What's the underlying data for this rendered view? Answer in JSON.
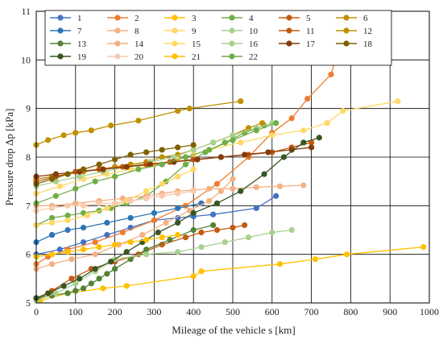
{
  "chart_data": {
    "type": "line",
    "xlabel": "Mileage of the vehicle s [km]",
    "ylabel": "Pressure drop Δp [kPa]",
    "xlim": [
      0,
      1000
    ],
    "ylim": [
      5,
      11
    ],
    "xticks": [
      "0",
      "100",
      "200",
      "300",
      "400",
      "500",
      "600",
      "700",
      "800",
      "900",
      "1000"
    ],
    "yticks": [
      "5",
      "6",
      "7",
      "8",
      "9",
      "10",
      "11"
    ],
    "grid": true,
    "legend_position": "top-left inside",
    "legend_columns": 6,
    "series": [
      {
        "name": "1",
        "color": "#4472c4",
        "x": [
          0,
          60,
          120,
          180,
          240,
          300,
          360,
          400,
          450,
          560,
          610
        ],
        "y": [
          6.0,
          6.1,
          6.25,
          6.4,
          6.55,
          6.7,
          6.75,
          6.78,
          6.82,
          6.95,
          7.2
        ]
      },
      {
        "name": "2",
        "color": "#ed7d31",
        "x": [
          0,
          30,
          80,
          150,
          220,
          300,
          380,
          460,
          540,
          600,
          650,
          690,
          750,
          780
        ],
        "y": [
          5.8,
          5.95,
          6.1,
          6.25,
          6.45,
          6.7,
          7.0,
          7.45,
          8.0,
          8.5,
          8.8,
          9.2,
          9.7,
          10.5
        ]
      },
      {
        "name": "3",
        "color": "#ffc000",
        "x": [
          10,
          80,
          170,
          230,
          400,
          420,
          620,
          710,
          790,
          985
        ],
        "y": [
          5.05,
          5.2,
          5.3,
          5.35,
          5.55,
          5.65,
          5.8,
          5.9,
          6.0,
          6.15
        ]
      },
      {
        "name": "4",
        "color": "#70ad47",
        "x": [
          0,
          40,
          80,
          120,
          160,
          190,
          230,
          280,
          330,
          380,
          430,
          480,
          530,
          580
        ],
        "y": [
          6.6,
          6.75,
          6.8,
          6.85,
          6.9,
          6.95,
          7.05,
          7.2,
          7.5,
          7.85,
          8.1,
          8.3,
          8.5,
          8.65
        ]
      },
      {
        "name": "5",
        "color": "#c55a11",
        "x": [
          0,
          40,
          90,
          140,
          200,
          260,
          320,
          380,
          420,
          460,
          500,
          530
        ],
        "y": [
          5.05,
          5.25,
          5.5,
          5.7,
          5.85,
          6.0,
          6.2,
          6.35,
          6.45,
          6.5,
          6.55,
          6.6
        ]
      },
      {
        "name": "6",
        "color": "#bf9000",
        "x": [
          0,
          40,
          80,
          120,
          160,
          200,
          240,
          280,
          320,
          360,
          400,
          450,
          500,
          540,
          575
        ],
        "y": [
          7.55,
          7.6,
          7.65,
          7.7,
          7.75,
          7.8,
          7.85,
          7.9,
          8.0,
          8.05,
          8.15,
          8.3,
          8.45,
          8.6,
          8.7
        ]
      },
      {
        "name": "7",
        "color": "#2e75b6",
        "x": [
          0,
          40,
          80,
          120,
          180,
          240,
          300,
          360,
          420
        ],
        "y": [
          6.25,
          6.4,
          6.5,
          6.55,
          6.65,
          6.75,
          6.85,
          6.95,
          7.05
        ]
      },
      {
        "name": "8",
        "color": "#f4b183",
        "x": [
          0,
          40,
          100,
          160,
          220,
          280,
          320,
          360,
          400,
          440,
          500,
          560,
          620,
          680
        ],
        "y": [
          7.0,
          7.0,
          7.05,
          7.1,
          7.15,
          7.2,
          7.25,
          7.3,
          7.32,
          7.35,
          7.35,
          7.38,
          7.4,
          7.42
        ]
      },
      {
        "name": "9",
        "color": "#ffd966",
        "x": [
          0,
          60,
          120,
          180,
          240,
          300,
          360,
          400,
          440,
          520,
          600,
          680,
          740,
          780,
          920
        ],
        "y": [
          7.25,
          7.4,
          7.55,
          7.65,
          7.75,
          7.85,
          7.95,
          8.05,
          8.15,
          8.3,
          8.45,
          8.55,
          8.7,
          8.95,
          9.15
        ]
      },
      {
        "name": "10",
        "color": "#a9d18e",
        "x": [
          0,
          50,
          110,
          170,
          230,
          290,
          350,
          400,
          450,
          500,
          560,
          600
        ],
        "y": [
          7.4,
          7.5,
          7.6,
          7.7,
          7.8,
          7.9,
          8.0,
          8.15,
          8.3,
          8.45,
          8.6,
          8.7
        ]
      },
      {
        "name": "11",
        "color": "#c55a11",
        "x": [
          0,
          50,
          100,
          160,
          220,
          280,
          340,
          400,
          470,
          540,
          600,
          650,
          700
        ],
        "y": [
          7.5,
          7.6,
          7.7,
          7.75,
          7.8,
          7.85,
          7.9,
          7.95,
          8.0,
          8.05,
          8.1,
          8.2,
          8.3
        ]
      },
      {
        "name": "12",
        "color": "#bf9000",
        "x": [
          0,
          30,
          70,
          100,
          140,
          190,
          260,
          360,
          390,
          520
        ],
        "y": [
          8.25,
          8.35,
          8.45,
          8.5,
          8.55,
          8.65,
          8.75,
          8.95,
          9.0,
          9.15
        ]
      },
      {
        "name": "13",
        "color": "#548235",
        "x": [
          0,
          40,
          80,
          100,
          120,
          140,
          160,
          180,
          200,
          240,
          280,
          340,
          400,
          450
        ],
        "y": [
          5.1,
          5.15,
          5.2,
          5.25,
          5.3,
          5.4,
          5.5,
          5.6,
          5.7,
          5.9,
          6.1,
          6.3,
          6.5,
          6.6
        ]
      },
      {
        "name": "14",
        "color": "#f4b183",
        "x": [
          0,
          40,
          90,
          150,
          210,
          270,
          330,
          390,
          440,
          470,
          500
        ],
        "y": [
          5.7,
          5.8,
          5.9,
          6.0,
          6.2,
          6.4,
          6.65,
          6.9,
          7.1,
          7.3,
          7.55
        ]
      },
      {
        "name": "15",
        "color": "#ffd966",
        "x": [
          0,
          40,
          80,
          130,
          180,
          230,
          280,
          320,
          360,
          400
        ],
        "y": [
          6.6,
          6.65,
          6.7,
          6.8,
          6.95,
          7.1,
          7.3,
          7.45,
          7.6,
          7.75
        ]
      },
      {
        "name": "16",
        "color": "#a9d18e",
        "x": [
          0,
          50,
          100,
          150,
          200,
          280,
          360,
          420,
          480,
          540,
          600,
          650
        ],
        "y": [
          5.05,
          5.2,
          5.4,
          5.65,
          5.9,
          6.0,
          6.05,
          6.15,
          6.25,
          6.35,
          6.45,
          6.5
        ]
      },
      {
        "name": "17",
        "color": "#843c0c",
        "x": [
          0,
          50,
          110,
          170,
          230,
          290,
          350,
          410,
          470,
          530,
          590,
          650,
          700
        ],
        "y": [
          7.6,
          7.65,
          7.7,
          7.75,
          7.8,
          7.85,
          7.9,
          7.95,
          8.0,
          8.05,
          8.1,
          8.15,
          8.2
        ]
      },
      {
        "name": "18",
        "color": "#7f6000",
        "x": [
          0,
          40,
          80,
          120,
          160,
          200,
          240,
          280,
          320,
          360,
          400
        ],
        "y": [
          7.45,
          7.55,
          7.65,
          7.75,
          7.85,
          7.95,
          8.05,
          8.1,
          8.15,
          8.2,
          8.25
        ]
      },
      {
        "name": "19",
        "color": "#375623",
        "x": [
          0,
          30,
          70,
          110,
          150,
          190,
          230,
          270,
          310,
          360,
          400,
          460,
          520,
          580,
          630,
          680,
          720
        ],
        "y": [
          5.1,
          5.2,
          5.35,
          5.5,
          5.7,
          5.85,
          6.05,
          6.25,
          6.45,
          6.65,
          6.85,
          7.05,
          7.3,
          7.65,
          8.0,
          8.3,
          8.4
        ]
      },
      {
        "name": "20",
        "color": "#f8cbad",
        "x": [
          0,
          40,
          80,
          120,
          160,
          200,
          240,
          280,
          320,
          360,
          400
        ],
        "y": [
          6.9,
          6.95,
          7.0,
          7.0,
          7.05,
          7.05,
          7.1,
          7.15,
          7.2,
          7.25,
          7.3
        ]
      },
      {
        "name": "21",
        "color": "#ffc000",
        "x": [
          0,
          40,
          80,
          120,
          160,
          200,
          240,
          280,
          320,
          360
        ],
        "y": [
          5.95,
          6.0,
          6.05,
          6.1,
          6.15,
          6.2,
          6.25,
          6.3,
          6.35,
          6.4
        ]
      },
      {
        "name": "22",
        "color": "#70ad47",
        "x": [
          0,
          50,
          100,
          150,
          200,
          260,
          320,
          380,
          440,
          500,
          560,
          610
        ],
        "y": [
          7.05,
          7.2,
          7.35,
          7.5,
          7.6,
          7.75,
          7.85,
          8.0,
          8.15,
          8.35,
          8.55,
          8.7
        ]
      }
    ]
  }
}
